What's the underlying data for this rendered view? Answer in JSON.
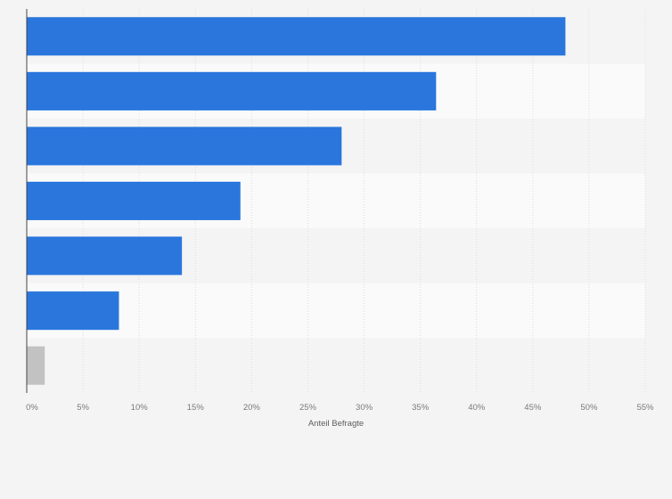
{
  "chart_data": {
    "type": "bar",
    "orientation": "horizontal",
    "title": "",
    "xlabel": "Anteil Befragte",
    "ylabel": "",
    "xlim": [
      0,
      55
    ],
    "x_ticks": [
      0,
      5,
      10,
      15,
      20,
      25,
      30,
      35,
      40,
      45,
      50,
      55
    ],
    "x_tick_suffix": "%",
    "categories": [
      "",
      "",
      "",
      "",
      "",
      "",
      ""
    ],
    "values": [
      47.9,
      36.4,
      28.0,
      19.0,
      13.8,
      8.2,
      1.6
    ],
    "bar_colors": [
      "#2a76dd",
      "#2a76dd",
      "#2a76dd",
      "#2a76dd",
      "#2a76dd",
      "#2a76dd",
      "#c2c2c2"
    ],
    "grid": true,
    "legend": "none"
  }
}
